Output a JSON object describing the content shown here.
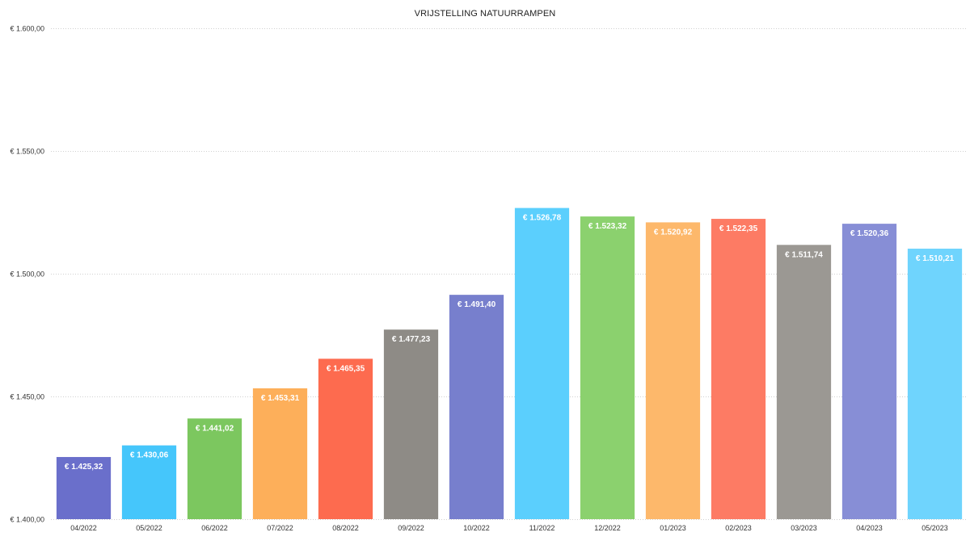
{
  "chart_data": {
    "type": "bar",
    "title": "VRIJSTELLING NATUURRAMPEN",
    "xlabel": "",
    "ylabel": "",
    "ylim": [
      1400,
      1600
    ],
    "y_ticks": [
      1400,
      1450,
      1500,
      1550,
      1600
    ],
    "y_tick_labels": [
      "€ 1.400,00",
      "€ 1.450,00",
      "€ 1.500,00",
      "€ 1.550,00",
      "€ 1.600,00"
    ],
    "grid": true,
    "legend": "none",
    "categories": [
      "04/2022",
      "05/2022",
      "06/2022",
      "07/2022",
      "08/2022",
      "09/2022",
      "10/2022",
      "11/2022",
      "12/2022",
      "01/2023",
      "02/2023",
      "03/2023",
      "04/2023",
      "05/2023"
    ],
    "values": [
      1425.32,
      1430.06,
      1441.02,
      1453.31,
      1465.35,
      1477.23,
      1491.4,
      1526.78,
      1523.32,
      1520.92,
      1522.35,
      1511.74,
      1520.36,
      1510.21
    ],
    "value_labels": [
      "€ 1.425,32",
      "€ 1.430,06",
      "€ 1.441,02",
      "€ 1.453,31",
      "€ 1.465,35",
      "€ 1.477,23",
      "€ 1.491,40",
      "€ 1.526,78",
      "€ 1.523,32",
      "€ 1.520,92",
      "€ 1.522,35",
      "€ 1.511,74",
      "€ 1.520,36",
      "€ 1.510,21"
    ],
    "colors": [
      "#6a6fcb",
      "#45c6fb",
      "#7cc75f",
      "#fdaf5a",
      "#fd6b4f",
      "#8e8b86",
      "#777fcd",
      "#5bcffd",
      "#8bd16e",
      "#fdb86b",
      "#fd7b64",
      "#9b9893",
      "#878ed6",
      "#6fd4fd"
    ]
  }
}
